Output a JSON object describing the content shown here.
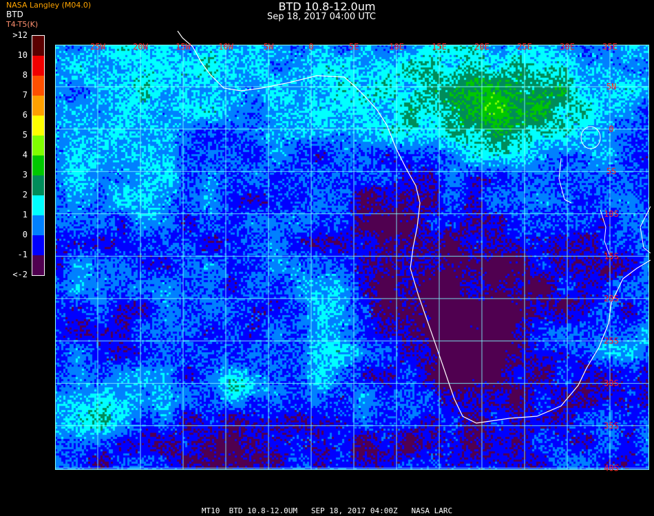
{
  "header": {
    "title": "BTD 10.8-12.0um",
    "subtitle": "Sep 18, 2017 04:00 UTC",
    "producer": "NASA Langley (M04.0)",
    "variable_short": "BTD",
    "units": "T4-T5(K)"
  },
  "colorbar": {
    "labels": [
      ">12",
      "10",
      "8",
      "7",
      "6",
      "5",
      "4",
      "3",
      "2",
      "1",
      "0",
      "-1",
      "<-2"
    ],
    "colors": [
      "#5a0000",
      "#f00000",
      "#ff5000",
      "#ffa000",
      "#ffff00",
      "#80ff00",
      "#00c800",
      "#008c5a",
      "#00ffff",
      "#0080ff",
      "#0000ff",
      "#500050"
    ]
  },
  "map": {
    "longitude_labels": [
      "25W",
      "20W",
      "15W",
      "10W",
      "5W",
      "0",
      "5E",
      "10E",
      "15E",
      "20E",
      "25E",
      "30E",
      "35E"
    ],
    "latitude_labels": [
      "5N",
      "0",
      "5S",
      "10S",
      "15S",
      "20S",
      "25S",
      "30S",
      "35S",
      "40S"
    ],
    "grid_color": "#80ffff",
    "label_color": "#ff2020",
    "coastline_color": "#ffffff"
  },
  "footer": {
    "text": "MT10  BTD 10.8-12.0UM   SEP 18, 2017 04:00Z   NASA LARC"
  }
}
